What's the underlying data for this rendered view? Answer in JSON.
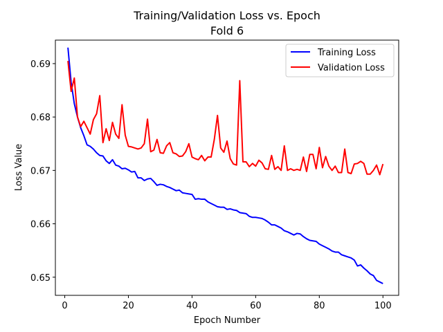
{
  "chart_data": {
    "type": "line",
    "title": "Training/Validation Loss vs. Epoch",
    "subtitle": "Fold 6",
    "xlabel": "Epoch Number",
    "ylabel": "Loss Value",
    "xlim": [
      -2.95,
      104.95
    ],
    "ylim": [
      0.6466,
      0.6944
    ],
    "xticks": [
      0,
      20,
      40,
      60,
      80,
      100
    ],
    "yticks": [
      0.65,
      0.66,
      0.67,
      0.68,
      0.69
    ],
    "ytick_labels": [
      "0.65",
      "0.66",
      "0.67",
      "0.68",
      "0.69"
    ],
    "grid": false,
    "legend_position": "top-right",
    "x": [
      1,
      2,
      3,
      4,
      5,
      6,
      7,
      8,
      9,
      10,
      11,
      12,
      13,
      14,
      15,
      16,
      17,
      18,
      19,
      20,
      21,
      22,
      23,
      24,
      25,
      26,
      27,
      28,
      29,
      30,
      31,
      32,
      33,
      34,
      35,
      36,
      37,
      38,
      39,
      40,
      41,
      42,
      43,
      44,
      45,
      46,
      47,
      48,
      49,
      50,
      51,
      52,
      53,
      54,
      55,
      56,
      57,
      58,
      59,
      60,
      61,
      62,
      63,
      64,
      65,
      66,
      67,
      68,
      69,
      70,
      71,
      72,
      73,
      74,
      75,
      76,
      77,
      78,
      79,
      80,
      81,
      82,
      83,
      84,
      85,
      86,
      87,
      88,
      89,
      90,
      91,
      92,
      93,
      94,
      95,
      96,
      97,
      98,
      99,
      100
    ],
    "series": [
      {
        "name": "Training Loss",
        "color": "#0000ff",
        "values": [
          0.693,
          0.6865,
          0.6825,
          0.68,
          0.678,
          0.6765,
          0.6748,
          0.6745,
          0.674,
          0.6733,
          0.6728,
          0.6727,
          0.6718,
          0.6713,
          0.672,
          0.671,
          0.6708,
          0.6703,
          0.6704,
          0.6701,
          0.6697,
          0.6698,
          0.6686,
          0.6686,
          0.6681,
          0.6684,
          0.6685,
          0.6679,
          0.6672,
          0.6674,
          0.6673,
          0.667,
          0.6668,
          0.6665,
          0.6662,
          0.6663,
          0.6658,
          0.6657,
          0.6656,
          0.6655,
          0.6646,
          0.6647,
          0.6646,
          0.6646,
          0.6641,
          0.6638,
          0.6635,
          0.6632,
          0.6631,
          0.6631,
          0.6627,
          0.6628,
          0.6626,
          0.6625,
          0.6621,
          0.662,
          0.6619,
          0.6614,
          0.6612,
          0.6612,
          0.6611,
          0.661,
          0.6607,
          0.6603,
          0.6598,
          0.6598,
          0.6595,
          0.6592,
          0.6587,
          0.6585,
          0.6582,
          0.6579,
          0.6582,
          0.6581,
          0.6576,
          0.6572,
          0.6569,
          0.6568,
          0.6567,
          0.6562,
          0.6559,
          0.6556,
          0.6553,
          0.6549,
          0.6547,
          0.6547,
          0.6542,
          0.654,
          0.6538,
          0.6536,
          0.6532,
          0.6521,
          0.6523,
          0.6517,
          0.6512,
          0.6506,
          0.6503,
          0.6494,
          0.6491,
          0.6488
        ]
      },
      {
        "name": "Validation Loss",
        "color": "#ff0000",
        "values": [
          0.6905,
          0.6848,
          0.6873,
          0.68,
          0.6782,
          0.6792,
          0.678,
          0.6768,
          0.6795,
          0.6806,
          0.684,
          0.6752,
          0.6778,
          0.6756,
          0.679,
          0.6768,
          0.676,
          0.6823,
          0.6766,
          0.6745,
          0.6744,
          0.6742,
          0.674,
          0.6742,
          0.675,
          0.6796,
          0.6735,
          0.6738,
          0.6758,
          0.6733,
          0.6732,
          0.6746,
          0.6752,
          0.6733,
          0.6731,
          0.6726,
          0.6727,
          0.6735,
          0.675,
          0.6725,
          0.6722,
          0.672,
          0.6728,
          0.6718,
          0.6725,
          0.6725,
          0.6758,
          0.6803,
          0.6742,
          0.6734,
          0.6755,
          0.6722,
          0.6712,
          0.671,
          0.6868,
          0.6716,
          0.6716,
          0.6707,
          0.6713,
          0.6708,
          0.6719,
          0.6714,
          0.6703,
          0.6702,
          0.6728,
          0.6702,
          0.6707,
          0.67,
          0.6746,
          0.67,
          0.6703,
          0.67,
          0.6702,
          0.67,
          0.6725,
          0.6698,
          0.673,
          0.673,
          0.6703,
          0.6743,
          0.6705,
          0.6726,
          0.6708,
          0.67,
          0.6708,
          0.6696,
          0.6696,
          0.674,
          0.6696,
          0.6694,
          0.6712,
          0.6713,
          0.6717,
          0.6713,
          0.6693,
          0.6693,
          0.67,
          0.671,
          0.6692,
          0.6712
        ]
      }
    ]
  }
}
